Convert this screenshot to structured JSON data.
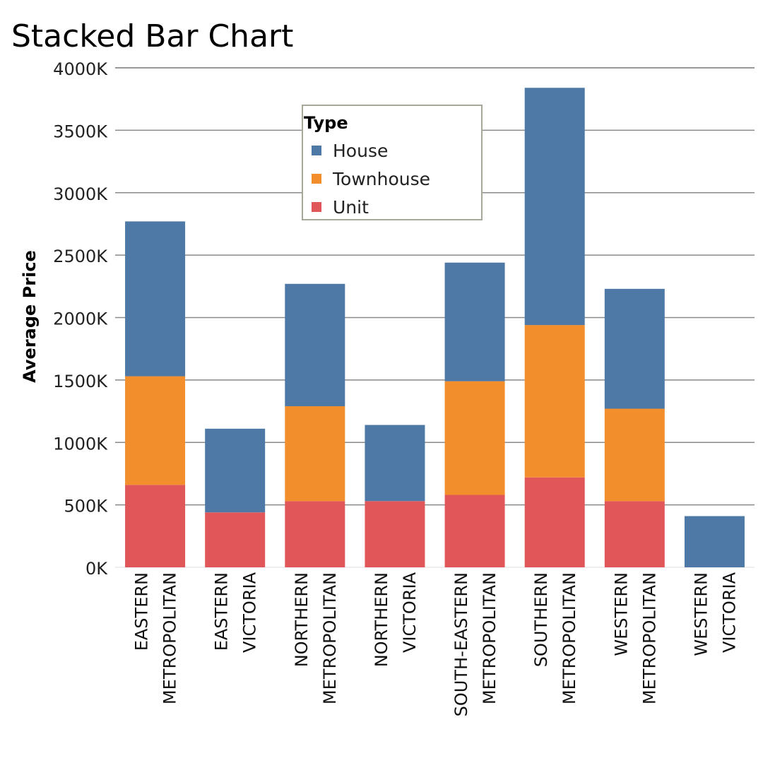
{
  "title": "Stacked Bar Chart",
  "chart_data": {
    "type": "bar",
    "stacked": true,
    "title": "Stacked Bar Chart",
    "xlabel": "",
    "ylabel": "Average Price",
    "ylim": [
      0,
      4000000
    ],
    "yticks": [
      0,
      500000,
      1000000,
      1500000,
      2000000,
      2500000,
      3000000,
      3500000,
      4000000
    ],
    "ytick_labels": [
      "0K",
      "500K",
      "1000K",
      "1500K",
      "2000K",
      "2500K",
      "3000K",
      "3500K",
      "4000K"
    ],
    "grid": true,
    "legend_placement": "top-center",
    "categories": [
      [
        "EASTERN",
        "METROPOLITAN"
      ],
      [
        "EASTERN",
        "VICTORIA"
      ],
      [
        "NORTHERN",
        "METROPOLITAN"
      ],
      [
        "NORTHERN",
        "VICTORIA"
      ],
      [
        "SOUTH-EASTERN",
        "METROPOLITAN"
      ],
      [
        "SOUTHERN",
        "METROPOLITAN"
      ],
      [
        "WESTERN",
        "METROPOLITAN"
      ],
      [
        "WESTERN",
        "VICTORIA"
      ]
    ],
    "legend_title": "Type",
    "series": [
      {
        "name": "Unit",
        "color": "#E15759",
        "values": [
          660000,
          440000,
          530000,
          530000,
          580000,
          720000,
          530000,
          0
        ]
      },
      {
        "name": "Townhouse",
        "color": "#F28E2B",
        "values": [
          870000,
          0,
          760000,
          0,
          910000,
          1220000,
          740000,
          0
        ]
      },
      {
        "name": "House",
        "color": "#4E79A7",
        "values": [
          1240000,
          670000,
          980000,
          610000,
          950000,
          1900000,
          960000,
          410000
        ]
      }
    ],
    "legend_order": [
      "House",
      "Townhouse",
      "Unit"
    ]
  }
}
